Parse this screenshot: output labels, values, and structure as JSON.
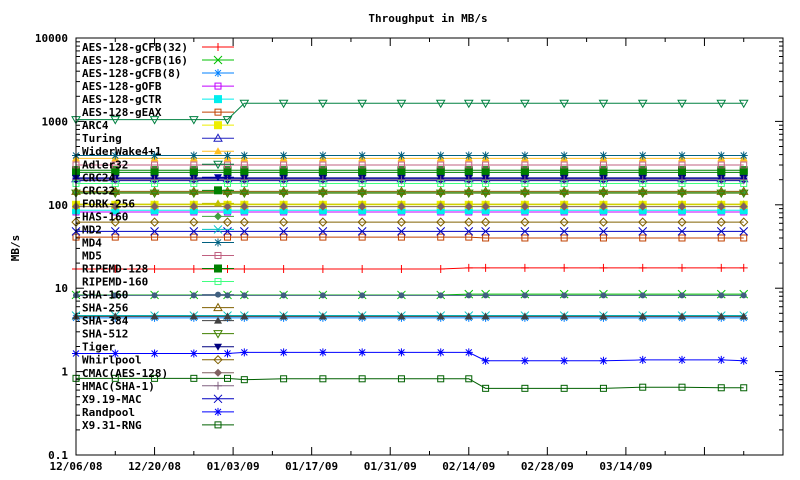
{
  "chart_data": {
    "type": "line",
    "title": "Throughput in MB/s",
    "xlabel": "",
    "ylabel": "MB/s",
    "yscale": "log",
    "ylim": [
      0.1,
      10000
    ],
    "xlim": [
      "12/06/08",
      "04/11/09"
    ],
    "legend_position": "top-left",
    "y_ticks": [
      "10000",
      "1000",
      "100",
      "10",
      "1",
      "0.1"
    ],
    "x_ticks": [
      "12/06/08",
      "12/20/08",
      "01/03/09",
      "01/17/09",
      "01/31/09",
      "02/14/09",
      "02/28/09",
      "03/14/09",
      "",
      ""
    ],
    "x": [
      "12/06/08",
      "12/13/08",
      "12/20/08",
      "12/27/08",
      "01/02/09",
      "01/05/09",
      "01/12/09",
      "01/19/09",
      "01/26/09",
      "02/02/09",
      "02/09/09",
      "02/14/09",
      "02/17/09",
      "02/24/09",
      "03/03/09",
      "03/10/09",
      "03/17/09",
      "03/24/09",
      "03/31/09",
      "04/04/09"
    ],
    "series": [
      {
        "name": "AES-128-gCFB(32)",
        "color": "#ff0000",
        "marker": "plus",
        "values": [
          17,
          17,
          17,
          17,
          17,
          17,
          17,
          17,
          17,
          17,
          17,
          17.5,
          17.5,
          17.5,
          17.5,
          17.5,
          17.5,
          17.5,
          17.5,
          17.5
        ]
      },
      {
        "name": "AES-128-gCFB(16)",
        "color": "#00c000",
        "marker": "cross",
        "values": [
          8.3,
          8.3,
          8.3,
          8.3,
          8.3,
          8.3,
          8.3,
          8.3,
          8.3,
          8.3,
          8.3,
          8.5,
          8.5,
          8.5,
          8.5,
          8.5,
          8.5,
          8.5,
          8.5,
          8.5
        ]
      },
      {
        "name": "AES-128-gCFB(8)",
        "color": "#0080ff",
        "marker": "star",
        "values": [
          4.4,
          4.4,
          4.4,
          4.4,
          4.4,
          4.4,
          4.4,
          4.4,
          4.4,
          4.4,
          4.4,
          4.4,
          4.4,
          4.4,
          4.4,
          4.4,
          4.4,
          4.4,
          4.4,
          4.4
        ]
      },
      {
        "name": "AES-128-gOFB",
        "color": "#c000ff",
        "marker": "box",
        "values": [
          82,
          82,
          82,
          82,
          82,
          82,
          82,
          82,
          82,
          82,
          82,
          82,
          82,
          82,
          82,
          82,
          82,
          82,
          82,
          82
        ]
      },
      {
        "name": "AES-128-gCTR",
        "color": "#00eeee",
        "marker": "fbox",
        "values": [
          86,
          86,
          86,
          86,
          86,
          86,
          86,
          86,
          86,
          86,
          86,
          86,
          86,
          86,
          86,
          86,
          86,
          86,
          86,
          86
        ]
      },
      {
        "name": "AES-128-gEAX",
        "color": "#c04000",
        "marker": "box",
        "values": [
          41,
          41,
          41,
          41,
          41,
          41,
          41,
          41,
          41,
          41,
          41,
          41,
          40,
          40,
          40,
          40,
          40,
          40,
          40,
          40
        ]
      },
      {
        "name": "ARC4",
        "color": "#eeee00",
        "marker": "fbox",
        "values": [
          100,
          100,
          100,
          100,
          100,
          100,
          100,
          100,
          100,
          100,
          100,
          100,
          100,
          100,
          100,
          100,
          100,
          100,
          100,
          100
        ]
      },
      {
        "name": "Turing",
        "color": "#2020c0",
        "marker": "triangle",
        "values": [
          205,
          205,
          205,
          205,
          205,
          205,
          205,
          205,
          205,
          205,
          205,
          205,
          205,
          205,
          205,
          205,
          205,
          205,
          205,
          205
        ]
      },
      {
        "name": "WiderWake4+1",
        "color": "#ffc020",
        "marker": "ftriangle",
        "values": [
          360,
          360,
          360,
          360,
          360,
          360,
          360,
          360,
          360,
          360,
          360,
          360,
          360,
          360,
          360,
          360,
          360,
          360,
          360,
          360
        ]
      },
      {
        "name": "Adler32",
        "color": "#008040",
        "marker": "itriangle",
        "values": [
          1050,
          1050,
          1050,
          1050,
          1050,
          1650,
          1650,
          1650,
          1650,
          1650,
          1650,
          1650,
          1650,
          1650,
          1650,
          1650,
          1650,
          1650,
          1650,
          1650
        ]
      },
      {
        "name": "CRC24",
        "color": "#0000a0",
        "marker": "fitriangle",
        "values": [
          195,
          195,
          195,
          195,
          195,
          195,
          195,
          195,
          195,
          195,
          195,
          195,
          195,
          195,
          195,
          195,
          195,
          195,
          195,
          195
        ]
      },
      {
        "name": "CRC32",
        "color": "#008000",
        "marker": "fbox",
        "values": [
          260,
          260,
          260,
          260,
          260,
          260,
          260,
          260,
          260,
          260,
          260,
          260,
          260,
          260,
          260,
          260,
          260,
          260,
          260,
          260
        ]
      },
      {
        "name": "FORK-256",
        "color": "#c0c000",
        "marker": "ftriangle",
        "values": [
          102,
          102,
          102,
          102,
          102,
          102,
          102,
          102,
          102,
          102,
          102,
          102,
          102,
          102,
          102,
          102,
          102,
          102,
          102,
          102
        ]
      },
      {
        "name": "HAS-160",
        "color": "#40a040",
        "marker": "fdiamond",
        "values": [
          140,
          140,
          140,
          140,
          140,
          140,
          140,
          140,
          140,
          140,
          140,
          140,
          140,
          140,
          140,
          140,
          140,
          140,
          140,
          140
        ]
      },
      {
        "name": "MD2",
        "color": "#00c0c0",
        "marker": "cross",
        "values": [
          4.7,
          4.7,
          4.7,
          4.7,
          4.7,
          4.7,
          4.7,
          4.7,
          4.7,
          4.7,
          4.7,
          4.7,
          4.7,
          4.7,
          4.7,
          4.7,
          4.7,
          4.7,
          4.7,
          4.7
        ]
      },
      {
        "name": "MD4",
        "color": "#006080",
        "marker": "star",
        "values": [
          390,
          390,
          390,
          390,
          390,
          390,
          390,
          390,
          390,
          390,
          390,
          390,
          390,
          390,
          390,
          390,
          390,
          390,
          390,
          390
        ]
      },
      {
        "name": "MD5",
        "color": "#c06080",
        "marker": "box",
        "values": [
          300,
          300,
          300,
          300,
          300,
          300,
          300,
          300,
          300,
          300,
          300,
          300,
          300,
          300,
          300,
          300,
          300,
          300,
          300,
          300
        ]
      },
      {
        "name": "RIPEMD-128",
        "color": "#008000",
        "marker": "fbox",
        "values": [
          245,
          245,
          245,
          245,
          245,
          245,
          245,
          245,
          245,
          245,
          245,
          245,
          245,
          245,
          245,
          245,
          245,
          245,
          245,
          245
        ]
      },
      {
        "name": "RIPEMD-160",
        "color": "#40ff80",
        "marker": "box",
        "values": [
          180,
          180,
          180,
          180,
          180,
          180,
          180,
          180,
          180,
          180,
          180,
          180,
          180,
          180,
          180,
          180,
          180,
          180,
          180,
          180
        ]
      },
      {
        "name": "SHA-160",
        "color": "#406080",
        "marker": "fcircle",
        "values": [
          8.2,
          8.2,
          8.2,
          8.2,
          8.2,
          8.2,
          8.2,
          8.2,
          8.2,
          8.2,
          8.2,
          8.2,
          8.2,
          8.2,
          8.2,
          8.2,
          8.2,
          8.2,
          8.2,
          8.2
        ]
      },
      {
        "name": "SHA-256",
        "color": "#806000",
        "marker": "triangle",
        "values": [
          145,
          145,
          145,
          145,
          145,
          145,
          145,
          145,
          145,
          145,
          145,
          145,
          145,
          145,
          145,
          145,
          145,
          145,
          145,
          145
        ]
      },
      {
        "name": "SHA-384",
        "color": "#404040",
        "marker": "ftriangle",
        "values": [
          4.6,
          4.6,
          4.6,
          4.6,
          4.6,
          4.6,
          4.6,
          4.6,
          4.6,
          4.6,
          4.6,
          4.6,
          4.6,
          4.6,
          4.6,
          4.6,
          4.6,
          4.6,
          4.6,
          4.6
        ]
      },
      {
        "name": "SHA-512",
        "color": "#408000",
        "marker": "itriangle",
        "values": [
          138,
          138,
          138,
          138,
          138,
          138,
          138,
          138,
          138,
          138,
          138,
          138,
          138,
          138,
          138,
          138,
          138,
          138,
          138,
          138
        ]
      },
      {
        "name": "Tiger",
        "color": "#000080",
        "marker": "fitriangle",
        "values": [
          210,
          210,
          210,
          210,
          210,
          210,
          210,
          210,
          210,
          210,
          210,
          210,
          210,
          210,
          210,
          210,
          210,
          210,
          210,
          210
        ]
      },
      {
        "name": "Whirlpool",
        "color": "#806000",
        "marker": "diamond",
        "values": [
          62,
          62,
          62,
          62,
          62,
          62,
          62,
          62,
          62,
          62,
          62,
          62,
          62,
          62,
          62,
          62,
          62,
          62,
          62,
          62
        ]
      },
      {
        "name": "CMAC(AES-128)",
        "color": "#806060",
        "marker": "fdiamond",
        "values": [
          95,
          95,
          95,
          95,
          95,
          95,
          95,
          95,
          95,
          95,
          95,
          95,
          95,
          95,
          95,
          95,
          95,
          95,
          95,
          95
        ]
      },
      {
        "name": "HMAC(SHA-1)",
        "color": "#806080",
        "marker": "plus",
        "values": [
          200,
          200,
          200,
          200,
          200,
          200,
          200,
          200,
          200,
          200,
          200,
          200,
          200,
          200,
          200,
          200,
          200,
          200,
          200,
          200
        ]
      },
      {
        "name": "X9.19-MAC",
        "color": "#0000c0",
        "marker": "cross",
        "values": [
          48,
          48,
          48,
          48,
          48,
          48,
          48,
          48,
          48,
          48,
          48,
          48,
          48,
          48,
          48,
          48,
          48,
          48,
          48,
          48
        ]
      },
      {
        "name": "Randpool",
        "color": "#0000ff",
        "marker": "star",
        "values": [
          1.65,
          1.65,
          1.65,
          1.65,
          1.65,
          1.7,
          1.7,
          1.7,
          1.7,
          1.7,
          1.7,
          1.7,
          1.35,
          1.35,
          1.35,
          1.35,
          1.38,
          1.38,
          1.38,
          1.35
        ]
      },
      {
        "name": "X9.31-RNG",
        "color": "#006000",
        "marker": "box",
        "values": [
          0.83,
          0.83,
          0.83,
          0.83,
          0.83,
          0.8,
          0.82,
          0.82,
          0.82,
          0.82,
          0.82,
          0.82,
          0.63,
          0.63,
          0.63,
          0.63,
          0.65,
          0.65,
          0.64,
          0.64
        ]
      }
    ]
  }
}
